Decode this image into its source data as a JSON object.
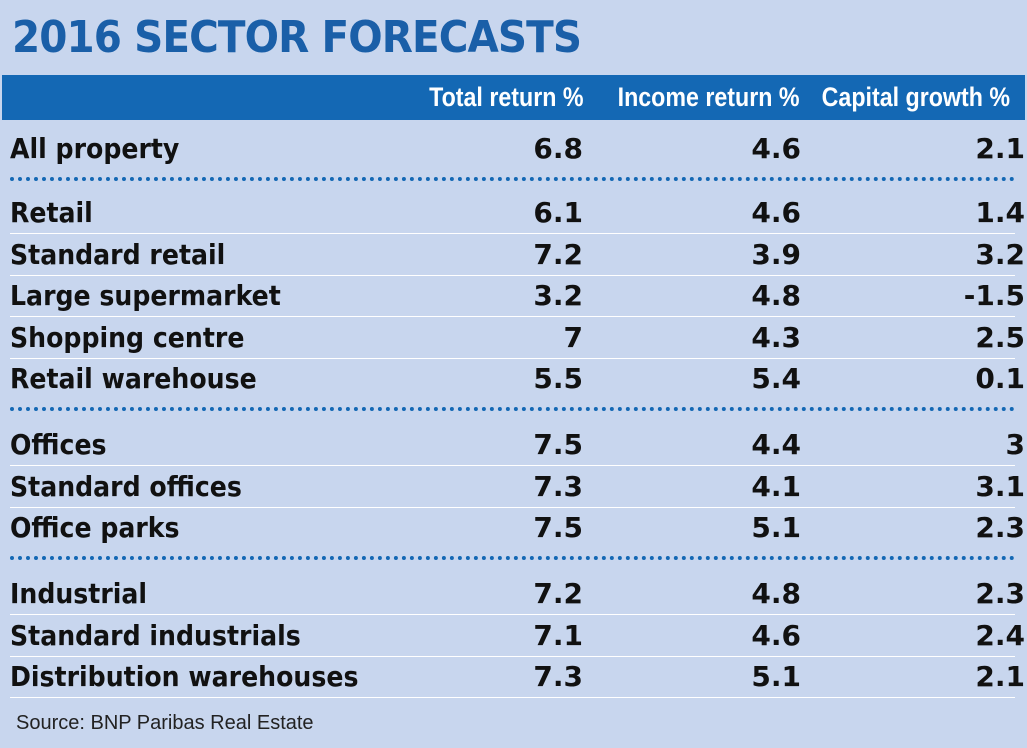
{
  "title": "2016 SECTOR FORECASTS",
  "colors": {
    "background": "#c8d6ee",
    "accent": "#1468b4",
    "title": "#1a5fa8"
  },
  "chart_data": {
    "type": "table",
    "title": "2016 SECTOR FORECASTS",
    "columns": [
      "Total return %",
      "Income return %",
      "Capital growth %"
    ],
    "groups": [
      {
        "rows": [
          {
            "label": "All property",
            "values": [
              "6.8",
              "4.6",
              "2.1"
            ]
          }
        ]
      },
      {
        "rows": [
          {
            "label": "Retail",
            "values": [
              "6.1",
              "4.6",
              "1.4"
            ]
          },
          {
            "label": "Standard retail",
            "values": [
              "7.2",
              "3.9",
              "3.2"
            ]
          },
          {
            "label": "Large supermarket",
            "values": [
              "3.2",
              "4.8",
              "-1.5"
            ]
          },
          {
            "label": "Shopping centre",
            "values": [
              "7",
              "4.3",
              "2.5"
            ]
          },
          {
            "label": "Retail warehouse",
            "values": [
              "5.5",
              "5.4",
              "0.1"
            ]
          }
        ]
      },
      {
        "rows": [
          {
            "label": "Offices",
            "values": [
              "7.5",
              "4.4",
              "3"
            ]
          },
          {
            "label": "Standard offices",
            "values": [
              "7.3",
              "4.1",
              "3.1"
            ]
          },
          {
            "label": "Office parks",
            "values": [
              "7.5",
              "5.1",
              "2.3"
            ]
          }
        ]
      },
      {
        "rows": [
          {
            "label": "Industrial",
            "values": [
              "7.2",
              "4.8",
              "2.3"
            ]
          },
          {
            "label": "Standard industrials",
            "values": [
              "7.1",
              "4.6",
              "2.4"
            ]
          },
          {
            "label": "Distribution warehouses",
            "values": [
              "7.3",
              "5.1",
              "2.1"
            ]
          }
        ]
      }
    ],
    "source": "Source: BNP Paribas Real Estate"
  }
}
